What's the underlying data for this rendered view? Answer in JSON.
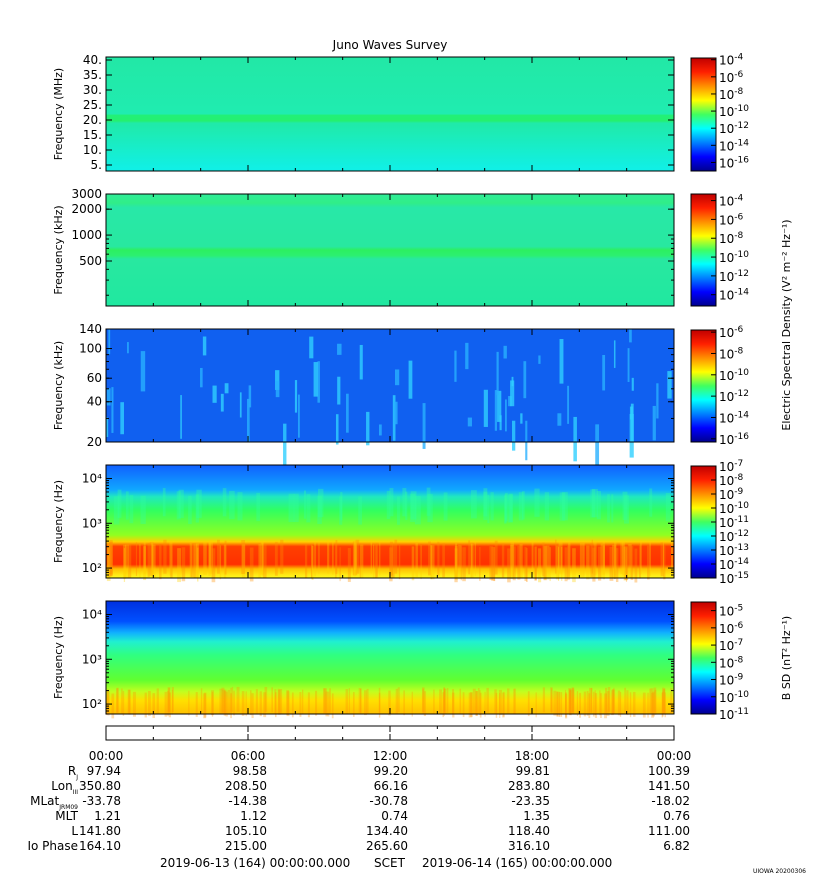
{
  "colors": {
    "jet": [
      "#00008f",
      "#0000ff",
      "#0080ff",
      "#00ffff",
      "#80ff80",
      "#ffff00",
      "#ff8000",
      "#ff0000",
      "#800000"
    ]
  },
  "title": "Juno Waves Survey",
  "footer": {
    "start": "2019-06-13 (164) 00:00:00.000",
    "scet": "SCET",
    "end": "2019-06-14 (165) 00:00:00.000",
    "stamp": "UIOWA 20200306"
  },
  "time_axis": {
    "ticks": [
      "00:00",
      "06:00",
      "12:00",
      "18:00",
      "00:00"
    ],
    "tick_hours": [
      0,
      6,
      12,
      18,
      24
    ],
    "range_hours": [
      0,
      24
    ]
  },
  "ephemeris": {
    "rows": [
      {
        "label": "R",
        "sub": "J",
        "values": [
          "97.94",
          "98.58",
          "99.20",
          "99.81",
          "100.39"
        ]
      },
      {
        "label": "Lon",
        "sub": "III",
        "values": [
          "350.80",
          "208.50",
          "66.16",
          "283.80",
          "141.50"
        ]
      },
      {
        "label": "MLat",
        "sub": "JRM09",
        "values": [
          "-33.78",
          "-14.38",
          "-30.78",
          "-23.35",
          "-18.02"
        ]
      },
      {
        "label": "MLT",
        "sub": "",
        "values": [
          "1.21",
          "1.12",
          "0.74",
          "1.35",
          "0.76"
        ]
      },
      {
        "label": "L",
        "sub": "",
        "values": [
          "141.80",
          "105.10",
          "134.40",
          "118.40",
          "111.00"
        ]
      },
      {
        "label": "Io Phase",
        "sub": "",
        "values": [
          "164.10",
          "215.00",
          "265.60",
          "316.10",
          "6.82"
        ]
      }
    ]
  },
  "color_axis_labels": {
    "electric": "Electric Spectral Density (V² m⁻² Hz⁻¹)",
    "magnetic": "B SD (nT² Hz⁻¹)"
  },
  "chart_data": [
    {
      "type": "heatmap",
      "panel": "hfr-high",
      "ylabel": "Frequency (MHz)",
      "yscale": "linear",
      "ylim": [
        3,
        41
      ],
      "ytick_values": [
        5,
        10,
        15,
        20,
        25,
        30,
        35,
        40
      ],
      "ytick_labels": [
        "5.",
        "10.",
        "15.",
        "20.",
        "25.",
        "30.",
        "35.",
        "40."
      ],
      "colorbar": {
        "exponents": [
          -4,
          -6,
          -8,
          -10,
          -12,
          -14,
          -16
        ],
        "range_exp": [
          -17,
          -3.8
        ]
      },
      "features": "uniform background, enhanced band near 21 MHz"
    },
    {
      "type": "heatmap",
      "panel": "hfr-low",
      "ylabel": "Frequency (kHz)",
      "yscale": "log",
      "ylim": [
        150,
        3000
      ],
      "ytick_values": [
        500,
        1000,
        2000,
        3000
      ],
      "ytick_labels": [
        "500",
        "1000",
        "2000",
        "3000"
      ],
      "colorbar": {
        "exponents": [
          -4,
          -6,
          -8,
          -10,
          -12,
          -14
        ],
        "range_exp": [
          -15.2,
          -3.3
        ]
      },
      "features": "bands near 600 kHz and 2200 kHz"
    },
    {
      "type": "heatmap",
      "panel": "lfr-high",
      "ylabel": "Frequency (kHz)",
      "yscale": "log",
      "ylim": [
        20,
        140
      ],
      "ytick_values": [
        20,
        40,
        60,
        100,
        140
      ],
      "ytick_labels": [
        "20",
        "40",
        "60",
        "100",
        "140"
      ],
      "colorbar": {
        "exponents": [
          -6,
          -8,
          -10,
          -12,
          -14,
          -16
        ],
        "range_exp": [
          -16.3,
          -5.8
        ]
      },
      "features": "blue background with sporadic cyan emission streaks"
    },
    {
      "type": "heatmap",
      "panel": "lfr-low",
      "ylabel": "Frequency (Hz)",
      "yscale": "log",
      "ylim": [
        60,
        20000
      ],
      "ytick_values": [
        100,
        1000,
        10000
      ],
      "ytick_labels": [
        "10²",
        "10³",
        "10⁴"
      ],
      "colorbar": {
        "exponents": [
          -7,
          -8,
          -9,
          -10,
          -11,
          -12,
          -13,
          -14,
          -15
        ],
        "range_exp": [
          -15,
          -7
        ]
      },
      "features": "intense red emission 100-300 Hz, green to 3 kHz, blue above"
    },
    {
      "type": "heatmap",
      "panel": "magnetic",
      "ylabel": "Frequency (Hz)",
      "yscale": "log",
      "ylim": [
        60,
        20000
      ],
      "ytick_values": [
        100,
        1000,
        10000
      ],
      "ytick_labels": [
        "10²",
        "10³",
        "10⁴"
      ],
      "colorbar": {
        "exponents": [
          -5,
          -6,
          -7,
          -8,
          -9,
          -10,
          -11
        ],
        "range_exp": [
          -11,
          -4.5
        ]
      },
      "features": "yellow-orange below 200 Hz, green mid, blue above 5 kHz"
    }
  ]
}
